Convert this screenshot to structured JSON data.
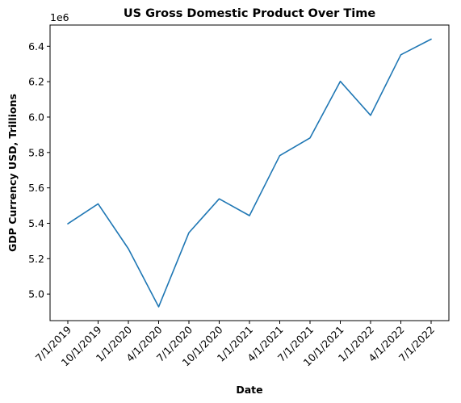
{
  "chart_data": {
    "type": "line",
    "title": "US Gross Domestic Product Over Time",
    "xlabel": "Date",
    "ylabel": "GDP Currency USD, Trillions",
    "y_offset_label": "1e6",
    "categories": [
      "7/1/2019",
      "10/1/2019",
      "1/1/2020",
      "4/1/2020",
      "7/1/2020",
      "10/1/2020",
      "1/1/2021",
      "4/1/2021",
      "7/1/2021",
      "10/1/2021",
      "1/1/2022",
      "4/1/2022",
      "7/1/2022"
    ],
    "series": [
      {
        "color": "#1f77b4",
        "values": [
          5.397,
          5.51,
          5.256,
          4.928,
          5.347,
          5.538,
          5.443,
          5.782,
          5.882,
          6.202,
          6.01,
          6.352,
          6.44
        ]
      }
    ],
    "y_ticks": [
      "5.0",
      "5.2",
      "5.4",
      "5.6",
      "5.8",
      "6.0",
      "6.2",
      "6.4"
    ],
    "ylim": [
      4.85,
      6.52
    ],
    "grid": false,
    "legend": "none"
  }
}
